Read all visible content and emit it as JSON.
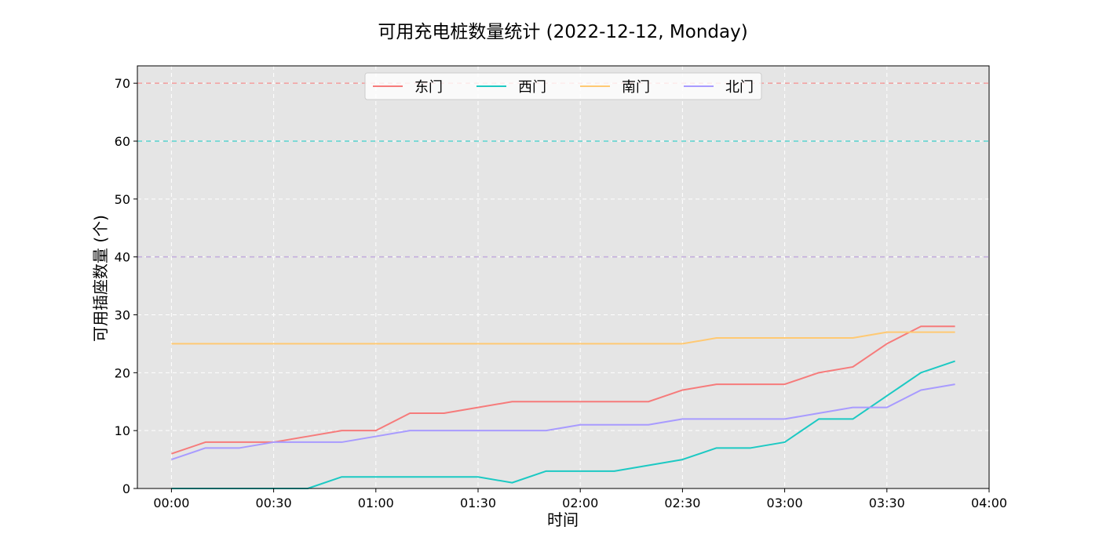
{
  "chart_data": {
    "type": "line",
    "title": "可用充电桩数量统计 (2022-12-12, Monday)",
    "xlabel": "时间",
    "ylabel": "可用插座数量 (个)",
    "x_tick_labels": [
      "00:00",
      "00:30",
      "01:00",
      "01:30",
      "02:00",
      "02:30",
      "03:00",
      "03:30",
      "04:00"
    ],
    "x_tick_minutes": [
      0,
      30,
      60,
      90,
      120,
      150,
      180,
      210,
      240
    ],
    "xlim_minutes": [
      -10,
      240
    ],
    "ylim": [
      0,
      73
    ],
    "y_ticks": [
      0,
      10,
      20,
      30,
      40,
      50,
      60,
      70
    ],
    "grid": true,
    "legend_position": "top-center",
    "x_minutes": [
      0,
      10,
      20,
      30,
      40,
      50,
      60,
      70,
      80,
      90,
      100,
      110,
      120,
      130,
      140,
      150,
      160,
      170,
      180,
      190,
      200,
      210,
      220,
      230
    ],
    "series": [
      {
        "name": "东门",
        "color": "#f67b7b",
        "capacity": 70,
        "values": [
          6,
          8,
          8,
          8,
          9,
          10,
          10,
          13,
          13,
          14,
          15,
          15,
          15,
          15,
          15,
          17,
          18,
          18,
          18,
          20,
          21,
          25,
          28,
          28
        ]
      },
      {
        "name": "西门",
        "color": "#1cc9c3",
        "capacity": 60,
        "values": [
          0,
          0,
          0,
          0,
          0,
          2,
          2,
          2,
          2,
          2,
          1,
          3,
          3,
          3,
          4,
          5,
          7,
          7,
          8,
          12,
          12,
          16,
          20,
          22
        ]
      },
      {
        "name": "南门",
        "color": "#ffc973",
        "capacity": 40,
        "values": [
          25,
          25,
          25,
          25,
          25,
          25,
          25,
          25,
          25,
          25,
          25,
          25,
          25,
          25,
          25,
          25,
          26,
          26,
          26,
          26,
          26,
          27,
          27,
          27
        ]
      },
      {
        "name": "北门",
        "color": "#a89bff",
        "capacity": 40,
        "values": [
          5,
          7,
          7,
          8,
          8,
          8,
          9,
          10,
          10,
          10,
          10,
          10,
          11,
          11,
          11,
          12,
          12,
          12,
          12,
          13,
          14,
          14,
          17,
          18
        ]
      }
    ]
  }
}
